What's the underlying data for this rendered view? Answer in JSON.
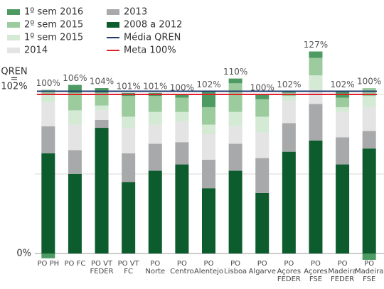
{
  "chart_data": {
    "type": "stacked_bar",
    "categories": [
      [
        "PO PH"
      ],
      [
        "PO FC"
      ],
      [
        "PO VT",
        "FEDER"
      ],
      [
        "PO VT",
        "FC"
      ],
      [
        "PO",
        "Norte"
      ],
      [
        "PO",
        "Centro"
      ],
      [
        "PO",
        "Alentejo"
      ],
      [
        "PO",
        "Lisboa"
      ],
      [
        "PO",
        "Algarve"
      ],
      [
        "PO",
        "Açores",
        "FEDER"
      ],
      [
        "PO",
        "Açores",
        "FSE"
      ],
      [
        "PO",
        "Madeira",
        "FEDER"
      ],
      [
        "PO",
        "Madeira",
        "FSE"
      ]
    ],
    "series": [
      {
        "name": "1º sem 2016",
        "color": "#4e9a63",
        "values": [
          -3,
          5,
          3,
          2,
          2,
          2,
          10,
          3,
          3,
          1,
          4,
          4,
          -4
        ]
      },
      {
        "name": "2º sem 2015",
        "color": "#9ccb9e",
        "values": [
          3,
          11,
          8,
          13,
          10,
          9,
          11,
          18,
          11,
          2,
          11,
          6,
          5
        ]
      },
      {
        "name": "1º sem 2015",
        "color": "#d4ead5",
        "values": [
          5,
          9,
          3,
          7,
          8,
          6,
          6,
          9,
          10,
          3,
          9,
          3,
          7
        ]
      },
      {
        "name": "2014",
        "color": "#e4e4e4",
        "values": [
          15,
          16,
          6,
          16,
          12,
          13,
          16,
          11,
          16,
          14,
          9,
          16,
          15
        ]
      },
      {
        "name": "2013",
        "color": "#a8a9ab",
        "values": [
          17,
          15,
          5,
          18,
          17,
          14,
          18,
          17,
          22,
          18,
          23,
          17,
          11
        ]
      },
      {
        "name": "2008 a 2012",
        "color": "#0d5c2e",
        "values": [
          63,
          50,
          79,
          45,
          52,
          56,
          41,
          52,
          38,
          64,
          71,
          56,
          66
        ]
      }
    ],
    "totals": [
      100,
      106,
      104,
      101,
      101,
      100,
      102,
      110,
      100,
      102,
      127,
      102,
      100
    ],
    "total_labels": [
      "100%",
      "106%",
      "104%",
      "101%",
      "101%",
      "100%",
      "102%",
      "110%",
      "100%",
      "102%",
      "127%",
      "102%",
      "100%"
    ],
    "reference_lines": [
      {
        "name": "Média QREN",
        "value": 102,
        "color": "#1f3a6e",
        "label": [
          "QREN",
          "=",
          "102%"
        ]
      },
      {
        "name": "Meta 100%",
        "value": 100,
        "color": "#e0202a"
      }
    ],
    "ylim": [
      -7,
      130
    ],
    "yticks": [
      {
        "value": 0,
        "label": "0%"
      }
    ],
    "grid_lines": [
      50,
      100
    ]
  }
}
